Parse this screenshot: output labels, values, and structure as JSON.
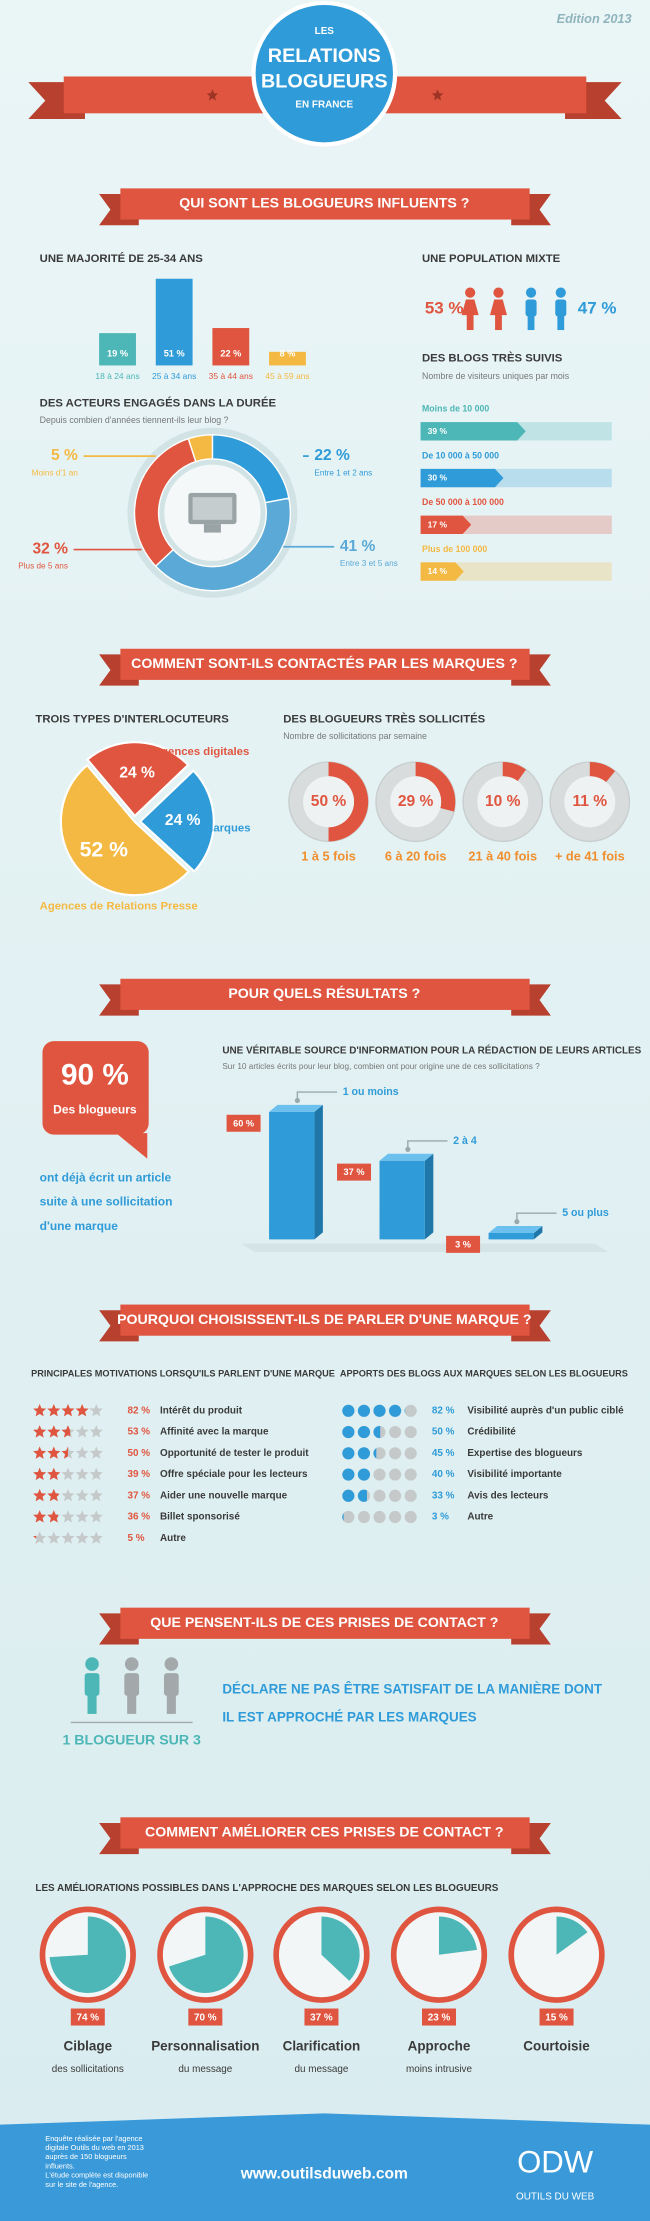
{
  "header": {
    "edition": "Edition 2013",
    "title": [
      "LES",
      "RELATIONS",
      "BLOGUEURS",
      "EN FRANCE"
    ]
  },
  "banners": [
    "QUI SONT LES BLOGUEURS INFLUENTS ?",
    "COMMENT SONT-ILS CONTACTÉS PAR LES MARQUES ?",
    "POUR QUELS RÉSULTATS ?",
    "POURQUOI CHOISISSENT-ILS DE PARLER D'UNE MARQUE ?",
    "QUE PENSENT-ILS DE CES PRISES DE CONTACT ?",
    "COMMENT AMÉLIORER CES PRISES DE CONTACT ?"
  ],
  "age": {
    "title": "UNE MAJORITÉ DE 25-34 ANS",
    "categories": [
      "18 à 24 ans",
      "25 à 34 ans",
      "35 à 44 ans",
      "45 à 59 ans"
    ],
    "values": [
      19,
      51,
      22,
      8
    ],
    "value_labels": [
      "19 %",
      "51 %",
      "22 %",
      "8 %"
    ],
    "colors": [
      "#4db6b6",
      "#2f9bd8",
      "#e0553f",
      "#f4b942"
    ]
  },
  "gender": {
    "title": "UNE POPULATION MIXTE",
    "values": [
      53,
      47
    ],
    "value_labels": [
      "53 %",
      "47 %"
    ],
    "colors": [
      "#e0553f",
      "#2f9bd8"
    ]
  },
  "duration": {
    "title": "DES ACTEURS ENGAGÉS DANS LA DURÉE",
    "subtitle": "Depuis combien d'années tiennent-ils leur blog ?",
    "categories": [
      "Entre 1 et 2 ans",
      "Entre 3 et 5 ans",
      "Plus de 5 ans",
      "Moins d'1 an"
    ],
    "values": [
      22,
      41,
      32,
      5
    ],
    "value_labels": [
      "22 %",
      "41 %",
      "32 %",
      "5 %"
    ],
    "colors": [
      "#2f9bd8",
      "#5aa9d6",
      "#e0553f",
      "#f4b942"
    ]
  },
  "visitors": {
    "title": "DES BLOGS TRÈS SUIVIS",
    "subtitle": "Nombre de visiteurs uniques par mois",
    "categories": [
      "Moins de 10 000",
      "De 10 000 à 50 000",
      "De 50 000 à 100 000",
      "Plus de 100 000"
    ],
    "values": [
      39,
      30,
      17,
      14
    ],
    "value_labels": [
      "39 %",
      "30 %",
      "17 %",
      "14 %"
    ],
    "colors": [
      "#4db6b6",
      "#2f9bd8",
      "#e0553f",
      "#f4b942"
    ]
  },
  "interlocutors": {
    "title": "TROIS TYPES D'INTERLOCUTEURS",
    "categories": [
      "Agences digitales",
      "Marques",
      "Agences de Relations Presse"
    ],
    "values": [
      24,
      24,
      52
    ],
    "value_labels": [
      "24 %",
      "24 %",
      "52 %"
    ],
    "colors": [
      "#e0553f",
      "#2f9bd8",
      "#f4b942"
    ]
  },
  "solicitations": {
    "title": "DES BLOGUEURS TRÈS SOLLICITÉS",
    "subtitle": "Nombre de sollicitations par semaine",
    "categories": [
      "1 à 5 fois",
      "6 à 20 fois",
      "21 à 40 fois",
      "+ de 41 fois"
    ],
    "values": [
      50,
      29,
      10,
      11
    ],
    "value_labels": [
      "50 %",
      "29 %",
      "10 %",
      "11 %"
    ]
  },
  "result": {
    "value_label": "90 %",
    "caption": "Des blogueurs",
    "text": [
      "ont déjà écrit un article",
      "suite à une sollicitation",
      "d'une marque"
    ]
  },
  "source": {
    "title": "UNE VÉRITABLE SOURCE D'INFORMATION POUR LA RÉDACTION DE LEURS ARTICLES",
    "subtitle": "Sur 10 articles écrits pour leur blog, combien ont pour origine une de ces sollicitations ?",
    "categories": [
      "1 ou moins",
      "2 à 4",
      "5 ou plus"
    ],
    "values": [
      60,
      37,
      3
    ],
    "value_labels": [
      "60 %",
      "37 %",
      "3 %"
    ]
  },
  "motivations": {
    "title": "PRINCIPALES MOTIVATIONS LORSQU'ILS PARLENT D'UNE MARQUE",
    "categories": [
      "Intérêt du produit",
      "Affinité avec la marque",
      "Opportunité de tester le produit",
      "Offre spéciale pour les lecteurs",
      "Aider une nouvelle marque",
      "Billet sponsorisé",
      "Autre"
    ],
    "values": [
      82,
      53,
      50,
      39,
      37,
      36,
      5
    ],
    "value_labels": [
      "82 %",
      "53 %",
      "50 %",
      "39 %",
      "37 %",
      "36 %",
      "5 %"
    ]
  },
  "contributions": {
    "title": "APPORTS DES BLOGS AUX MARQUES SELON LES BLOGUEURS",
    "categories": [
      "Visibilité auprès d'un public ciblé",
      "Crédibilité",
      "Expertise des blogueurs",
      "Visibilité importante",
      "Avis des lecteurs",
      "Autre"
    ],
    "values": [
      82,
      50,
      45,
      40,
      33,
      3
    ],
    "value_labels": [
      "82 %",
      "50 %",
      "45 %",
      "40 %",
      "33 %",
      "3 %"
    ]
  },
  "satisfaction": {
    "label": "1 BLOGUEUR SUR 3",
    "text": [
      "DÉCLARE NE PAS ÊTRE SATISFAIT DE LA MANIÈRE DONT",
      "IL EST APPROCHÉ PAR LES MARQUES"
    ]
  },
  "improvements": {
    "subtitle": "LES AMÉLIORATIONS POSSIBLES DANS L'APPROCHE DES MARQUES SELON LES BLOGUEURS",
    "categories": [
      "Ciblage",
      "Personnalisation",
      "Clarification",
      "Approche",
      "Courtoisie"
    ],
    "details": [
      "des sollicitations",
      "du message",
      "du message",
      "moins intrusive",
      null
    ],
    "values": [
      74,
      70,
      37,
      23,
      15
    ],
    "value_labels": [
      "74 %",
      "70 %",
      "37 %",
      "23 %",
      "15 %"
    ]
  },
  "footer": {
    "note": [
      "Enquête réalisée par l'agence",
      "digitale Outils du web en 2013",
      "auprès de 150 blogueurs",
      "influents.",
      "L'étude complète est disponible",
      "sur le site de l'agence."
    ],
    "url": "www.outilsduweb.com",
    "logo": "ODW",
    "logo_sub": "OUTILS DU WEB"
  }
}
